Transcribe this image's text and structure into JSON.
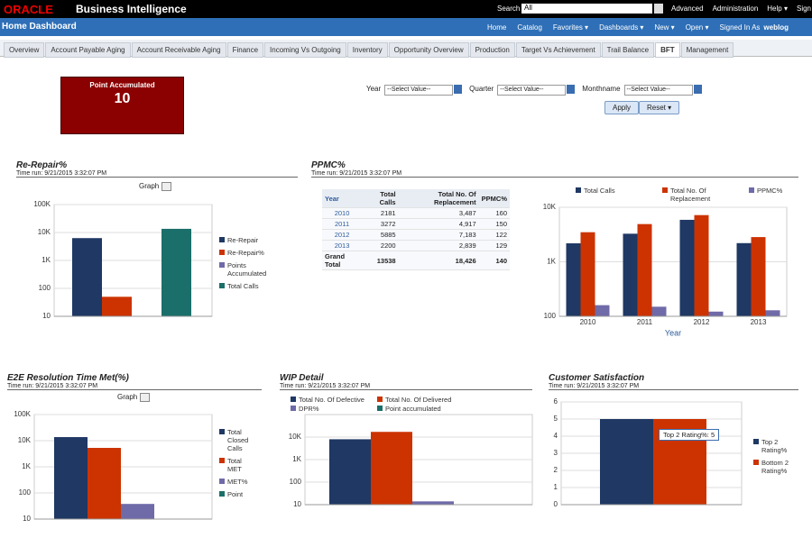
{
  "header": {
    "logo": "ORACLE",
    "product": "Business Intelligence",
    "search_label": "Search",
    "search_scope": "All",
    "links": [
      "Advanced",
      "Administration",
      "Help ▾",
      "Sign Out"
    ]
  },
  "nav": {
    "title": "Home Dashboard",
    "links": [
      "Home",
      "Catalog",
      "Favorites ▾",
      "Dashboards ▾",
      "New ▾",
      "Open ▾"
    ],
    "signed_in": "Signed In As",
    "user": "weblog"
  },
  "tabs": {
    "items": [
      "Overview",
      "Account Payable Aging",
      "Account Receivable Aging",
      "Finance",
      "Incoming Vs Outgoing",
      "Inventory",
      "Opportunity Overview",
      "Production",
      "Target Vs Achievement",
      "Trail Balance",
      "BFT",
      "Management"
    ],
    "active": 10
  },
  "kpi": {
    "title": "Point Accumulated",
    "value": 10
  },
  "filters": {
    "items": [
      {
        "label": "Year",
        "value": "--Select Value--"
      },
      {
        "label": "Quarter",
        "value": "--Select Value--"
      },
      {
        "label": "Monthname",
        "value": "--Select Value--"
      }
    ],
    "apply": "Apply",
    "reset": "Reset ▾"
  },
  "sections": [
    {
      "title": "Re-Repair%",
      "time_run": "Time run: 9/21/2015 3:32:07 PM",
      "view": "Graph"
    },
    {
      "title": "PPMC%",
      "time_run": "Time run: 9/21/2015 3:32:07 PM"
    },
    {
      "title": "E2E Resolution Time Met(%)",
      "time_run": "Time run: 9/21/2015 3:32:07 PM",
      "view": "Graph"
    },
    {
      "title": "WIP Detail",
      "time_run": "Time run: 9/21/2015 3:32:07 PM"
    },
    {
      "title": "Customer Satisfaction",
      "time_run": "Time run: 9/21/2015 3:32:07 PM"
    }
  ],
  "table": {
    "columns": [
      "Year",
      "Total Calls",
      "Total No. Of Replacement",
      "PPMC%"
    ],
    "rows": [
      [
        "2010",
        "2181",
        "3,487",
        "160"
      ],
      [
        "2011",
        "3272",
        "4,917",
        "150"
      ],
      [
        "2012",
        "5885",
        "7,183",
        "122"
      ],
      [
        "2013",
        "2200",
        "2,839",
        "129"
      ],
      [
        "Grand Total",
        "13538",
        "18,426",
        "140"
      ]
    ]
  },
  "chart_data": [
    {
      "type": "bar",
      "log_scale": true,
      "legend": "right",
      "categories": [
        null
      ],
      "ylim": [
        10,
        100000
      ],
      "yticks": [
        10,
        100,
        {
          "value": 1000,
          "label": "1K"
        },
        {
          "value": 10000,
          "label": "10K"
        },
        {
          "value": 100000,
          "label": "100K"
        }
      ],
      "series": [
        {
          "name": "Re-Repair",
          "color": "#1f3864",
          "values": [
            6300
          ]
        },
        {
          "name": "Re-Repair%",
          "color": "#cc3300",
          "values": [
            50
          ]
        },
        {
          "name": "Points Accumulated",
          "color": "#6f6aa8",
          "values": [
            10
          ]
        },
        {
          "name": "Total Calls",
          "color": "#1a6f6a",
          "values": [
            13538
          ]
        }
      ]
    },
    {
      "type": "bar",
      "log_scale": true,
      "legend": "top",
      "categories": [
        "2010",
        "2011",
        "2012",
        "2013"
      ],
      "xlabel": "Year",
      "ylim": [
        100,
        10000
      ],
      "yticks": [
        100,
        {
          "value": 1000,
          "label": "1K"
        },
        {
          "value": 10000,
          "label": "10K"
        }
      ],
      "series": [
        {
          "name": "Total Calls",
          "color": "#1f3864",
          "values": [
            2181,
            3272,
            5885,
            2200
          ]
        },
        {
          "name": "Total No. Of Replacement",
          "color": "#cc3300",
          "values": [
            3487,
            4917,
            7183,
            2839
          ]
        },
        {
          "name": "PPMC%",
          "color": "#6f6aa8",
          "values": [
            160,
            150,
            122,
            129
          ]
        }
      ]
    },
    {
      "type": "bar",
      "log_scale": true,
      "legend": "right",
      "categories": [
        null
      ],
      "ylim": [
        10,
        100000
      ],
      "yticks": [
        10,
        100,
        {
          "value": 1000,
          "label": "1K"
        },
        {
          "value": 10000,
          "label": "10K"
        },
        {
          "value": 100000,
          "label": "100K"
        }
      ],
      "series": [
        {
          "name": "Total Closed Calls",
          "color": "#1f3864",
          "values": [
            13700
          ]
        },
        {
          "name": "Total MET",
          "color": "#cc3300",
          "values": [
            5300
          ]
        },
        {
          "name": "MET%",
          "color": "#6f6aa8",
          "values": [
            38
          ]
        },
        {
          "name": "Point",
          "color": "#1a6f6a",
          "values": [
            10
          ]
        }
      ]
    },
    {
      "type": "bar",
      "log_scale": true,
      "legend": "top",
      "categories": [
        null
      ],
      "ylim": [
        10,
        100000
      ],
      "yticks": [
        10,
        100,
        {
          "value": 1000,
          "label": "1K"
        },
        {
          "value": 10000,
          "label": "10K"
        }
      ],
      "series": [
        {
          "name": "Total No. Of Defective",
          "color": "#1f3864",
          "values": [
            8000
          ]
        },
        {
          "name": "Total No. Of Delivered",
          "color": "#cc3300",
          "values": [
            17000
          ]
        },
        {
          "name": "DPR%",
          "color": "#6f6aa8",
          "values": [
            14
          ]
        },
        {
          "name": "Point accumulated",
          "color": "#1a6f6a",
          "values": [
            10
          ]
        }
      ]
    },
    {
      "type": "bar",
      "log_scale": false,
      "legend": "right",
      "categories": [
        null
      ],
      "ylim": [
        0,
        6
      ],
      "yticks": [
        0,
        1,
        2,
        3,
        4,
        5,
        6
      ],
      "annotation": "Top 2 Rating%: 5",
      "series": [
        {
          "name": "Top 2 Rating%",
          "color": "#1f3864",
          "values": [
            5
          ]
        },
        {
          "name": "Bottom 2 Rating%",
          "color": "#cc3300",
          "values": [
            5
          ]
        }
      ]
    }
  ]
}
